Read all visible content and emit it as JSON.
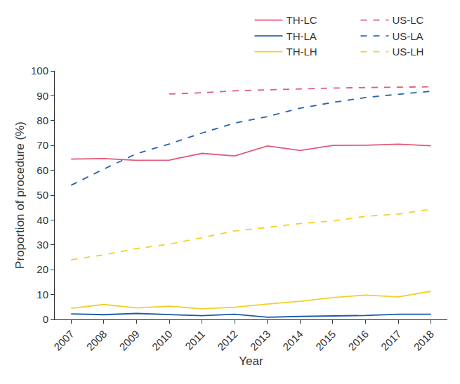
{
  "chart_data": {
    "type": "line",
    "x_label": "Year",
    "y_label": "Proportion of procedure (%)",
    "categories": [
      "2007",
      "2008",
      "2009",
      "2010",
      "2011",
      "2012",
      "2013",
      "2014",
      "2015",
      "2016",
      "2017",
      "2018"
    ],
    "ylim": [
      0,
      100
    ],
    "yticks": [
      0,
      10,
      20,
      30,
      40,
      50,
      60,
      70,
      80,
      90,
      100
    ],
    "grid": false,
    "legend": "top right",
    "series": [
      {
        "name": "TH-LC",
        "color": "#e25a7a",
        "line_style": "solid",
        "values": [
          64.5,
          64.7,
          64.0,
          64.1,
          66.8,
          65.8,
          69.8,
          68.0,
          70.0,
          70.1,
          70.5,
          69.9
        ]
      },
      {
        "name": "TH-LA",
        "color": "#1d5aa6",
        "line_style": "solid",
        "values": [
          2.2,
          1.9,
          2.4,
          1.9,
          1.5,
          2.1,
          0.9,
          1.2,
          1.4,
          1.6,
          2.1,
          2.1
        ]
      },
      {
        "name": "TH-LH",
        "color": "#f2d02a",
        "line_style": "solid",
        "values": [
          4.5,
          6.0,
          4.6,
          5.3,
          4.3,
          4.9,
          6.2,
          7.3,
          8.8,
          9.8,
          9.1,
          11.3
        ]
      },
      {
        "name": "US-LC",
        "color": "#e25a7a",
        "line_style": "dashed",
        "values": [
          null,
          null,
          null,
          90.7,
          91.2,
          92.0,
          92.4,
          92.8,
          93.1,
          93.3,
          93.5,
          93.6
        ]
      },
      {
        "name": "US-LA",
        "color": "#2b62ad",
        "line_style": "dashed",
        "values": [
          54.0,
          60.5,
          66.7,
          70.6,
          75.0,
          79.0,
          81.6,
          85.0,
          87.3,
          89.3,
          90.6,
          91.8
        ]
      },
      {
        "name": "US-LH",
        "color": "#f2d02a",
        "line_style": "dashed",
        "values": [
          24.0,
          26.0,
          28.5,
          30.3,
          32.9,
          35.6,
          37.0,
          38.6,
          39.6,
          41.5,
          42.4,
          44.3
        ]
      }
    ]
  }
}
